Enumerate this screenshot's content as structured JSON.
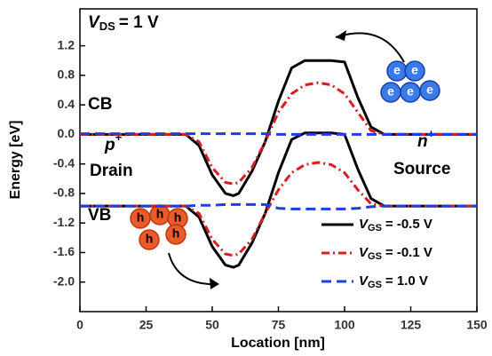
{
  "chart_data": {
    "type": "line",
    "xlabel": "Location [nm]",
    "ylabel": "Energy [eV]",
    "xlim": [
      0,
      150
    ],
    "ylim": [
      -2.4,
      1.7
    ],
    "xticks": [
      0,
      25,
      50,
      75,
      100,
      125,
      150
    ],
    "yticks": [
      1.2,
      0.8,
      0.4,
      {
        "value": 0,
        "label": "0.0"
      },
      -0.4,
      -0.8,
      -1.2,
      -1.6,
      {
        "value": -2,
        "label": "-2.0"
      }
    ],
    "x": [
      0,
      10,
      20,
      30,
      40,
      45,
      50,
      55,
      58,
      60,
      65,
      70,
      75,
      80,
      85,
      90,
      95,
      100,
      105,
      110,
      115,
      120,
      130,
      140,
      150
    ],
    "series": [
      {
        "name": "V",
        "name_sub": "GS",
        "name_rest": "= -0.5 V",
        "color": "#000000",
        "dash": "none",
        "values": [
          0,
          0,
          0,
          0,
          0,
          -0.15,
          -0.55,
          -0.8,
          -0.83,
          -0.8,
          -0.5,
          -0.1,
          0.45,
          0.9,
          1.0,
          1.0,
          1.0,
          0.98,
          0.5,
          0.1,
          0,
          0,
          0,
          0,
          0
        ],
        "values_vb": [
          -0.97,
          -0.97,
          -0.97,
          -0.97,
          -0.97,
          -1.12,
          -1.52,
          -1.77,
          -1.8,
          -1.77,
          -1.47,
          -1.07,
          -0.52,
          -0.07,
          0.02,
          0.02,
          0.02,
          0,
          -0.47,
          -0.87,
          -0.97,
          -0.97,
          -0.97,
          -0.97,
          -0.97
        ]
      },
      {
        "name": "V",
        "name_sub": "GS",
        "name_rest": "= -0.1 V",
        "color": "#d42020",
        "dash": "9,4,2,4",
        "values": [
          0,
          0,
          0,
          0,
          0,
          -0.1,
          -0.45,
          -0.65,
          -0.67,
          -0.65,
          -0.45,
          -0.1,
          0.3,
          0.55,
          0.67,
          0.7,
          0.67,
          0.55,
          0.3,
          0.05,
          0,
          0,
          0,
          0,
          0
        ],
        "values_vb": [
          -0.97,
          -0.97,
          -0.97,
          -0.97,
          -0.97,
          -1.07,
          -1.42,
          -1.62,
          -1.64,
          -1.62,
          -1.42,
          -1.07,
          -0.75,
          -0.52,
          -0.41,
          -0.38,
          -0.41,
          -0.52,
          -0.75,
          -0.94,
          -0.97,
          -0.97,
          -0.97,
          -0.97,
          -0.97
        ]
      },
      {
        "name": "V",
        "name_sub": "GS",
        "name_rest": "=  1.0 V",
        "color": "#1f3de0",
        "dash": "11,6",
        "values": [
          0.01,
          0.01,
          0.01,
          0.01,
          0.01,
          0.01,
          0.01,
          0.01,
          0.01,
          0.01,
          0.01,
          0.01,
          0,
          0,
          0,
          0,
          0,
          0,
          0,
          0,
          0,
          0,
          0,
          0,
          0
        ],
        "values_vb": [
          -0.97,
          -0.97,
          -0.97,
          -0.97,
          -0.97,
          -0.96,
          -0.96,
          -0.95,
          -0.95,
          -0.95,
          -0.95,
          -0.95,
          -1.0,
          -1.01,
          -1.01,
          -1.01,
          -1.01,
          -1.01,
          -1.0,
          -0.98,
          -0.97,
          -0.97,
          -0.97,
          -0.97,
          -0.97
        ]
      }
    ],
    "annotations": {
      "vds_symbol": "V",
      "vds_sub": "DS",
      "vds_rest": "= 1 V",
      "cb": "CB",
      "vb": "VB",
      "p": "p",
      "p_sup": "+",
      "drain": "Drain",
      "n": "n",
      "n_sup": "+",
      "source": "Source",
      "electron": "e",
      "hole": "h"
    }
  }
}
